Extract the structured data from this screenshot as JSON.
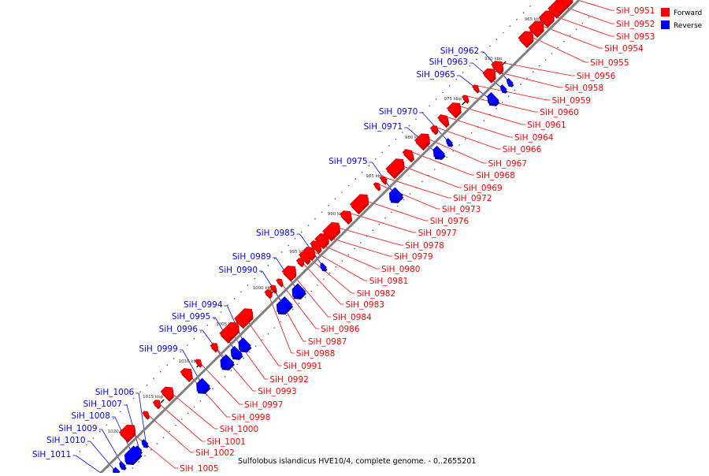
{
  "legend": {
    "forward": {
      "label": "Forward",
      "color": "#ff0000"
    },
    "reverse": {
      "label": "Reverse",
      "color": "#0000ff"
    }
  },
  "footer_caption": "Sulfolobus islandicus HVE10/4, complete genome. - 0..2655201",
  "backbone_color": "#808080",
  "kbp_ticks": [
    "965 kbp",
    "970 kbp",
    "975 kbp",
    "980 kbp",
    "985 kbp",
    "990 kbp",
    "995 kbp",
    "1000 kbp",
    "1005 kbp",
    "1010 kbp",
    "1015 kbp",
    "1020 kbp"
  ],
  "forward_genes": [
    "SiH_0951",
    "SiH_0952",
    "SiH_0953",
    "SiH_0954",
    "SiH_0955",
    "SiH_0956",
    "SiH_0958",
    "SiH_0959",
    "SiH_0960",
    "SiH_0961",
    "SiH_0964",
    "SiH_0966",
    "SiH_0967",
    "SiH_0968",
    "SiH_0969",
    "SiH_0972",
    "SiH_0973",
    "SiH_0976",
    "SiH_0977",
    "SiH_0978",
    "SiH_0979",
    "SiH_0980",
    "SiH_0981",
    "SiH_0982",
    "SiH_0983",
    "SiH_0984",
    "SiH_0986",
    "SiH_0987",
    "SiH_0988",
    "SiH_0991",
    "SiH_0992",
    "SiH_0993",
    "SiH_0997",
    "SiH_0998",
    "SiH_1000",
    "SiH_1001",
    "SiH_1002",
    "SiH_1005"
  ],
  "reverse_genes": [
    "SiH_0962",
    "SiH_0963",
    "SiH_0965",
    "SiH_0970",
    "SiH_0971",
    "SiH_0975",
    "SiH_0985",
    "SiH_0989",
    "SiH_0990",
    "SiH_0994",
    "SiH_0995",
    "SiH_0996",
    "SiH_0999",
    "SiH_1006",
    "SiH_1007",
    "SiH_1008",
    "SiH_1009",
    "SiH_1010",
    "SiH_1011"
  ]
}
